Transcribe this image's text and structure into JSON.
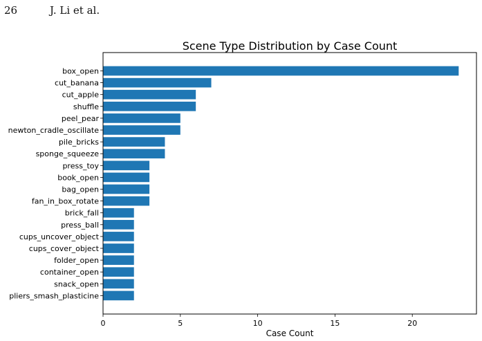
{
  "page": {
    "number": "26",
    "authors": "J. Li et al."
  },
  "chart_data": {
    "type": "bar",
    "orientation": "horizontal",
    "title": "Scene Type Distribution by Case Count",
    "xlabel": "Case Count",
    "ylabel": "",
    "xlim": [
      0,
      24.15
    ],
    "xticks": [
      0,
      5,
      10,
      15,
      20
    ],
    "grid": false,
    "bar_color": "#1f77b4",
    "categories": [
      "box_open",
      "cut_banana",
      "cut_apple",
      "shuffle",
      "peel_pear",
      "newton_cradle_oscillate",
      "pile_bricks",
      "sponge_squeeze",
      "press_toy",
      "book_open",
      "bag_open",
      "fan_in_box_rotate",
      "brick_fall",
      "press_ball",
      "cups_uncover_object",
      "cups_cover_object",
      "folder_open",
      "container_open",
      "snack_open",
      "pliers_smash_plasticine"
    ],
    "values": [
      23,
      7,
      6,
      6,
      5,
      5,
      4,
      4,
      3,
      3,
      3,
      3,
      2,
      2,
      2,
      2,
      2,
      2,
      2,
      2
    ]
  }
}
